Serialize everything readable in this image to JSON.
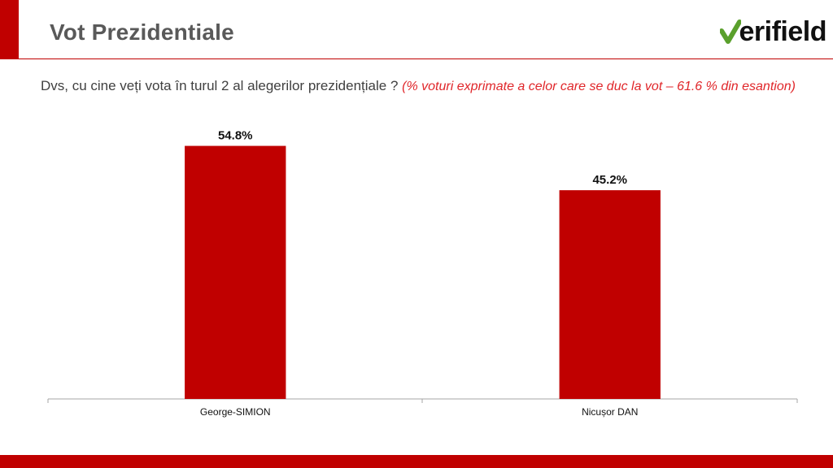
{
  "slide": {
    "title": "Vot Prezidentiale",
    "logo_text": "erifield",
    "question": "Dvs, cu cine veți vota în turul 2 al alegerilor prezidențiale ?",
    "note": "(% voturi exprimate a celor care se duc la vot – 61.6 % din esantion)"
  },
  "colors": {
    "accent": "#c00000",
    "logo_green": "#5aa02c",
    "bar": "#c00000"
  },
  "chart_data": {
    "type": "bar",
    "categories": [
      "George-SIMION",
      "Nicușor DAN"
    ],
    "values": [
      54.8,
      45.2
    ],
    "labels": [
      "54.8%",
      "45.2%"
    ],
    "title": "",
    "xlabel": "",
    "ylabel": "",
    "ylim": [
      0,
      60
    ],
    "grid": false,
    "legend": "none"
  }
}
